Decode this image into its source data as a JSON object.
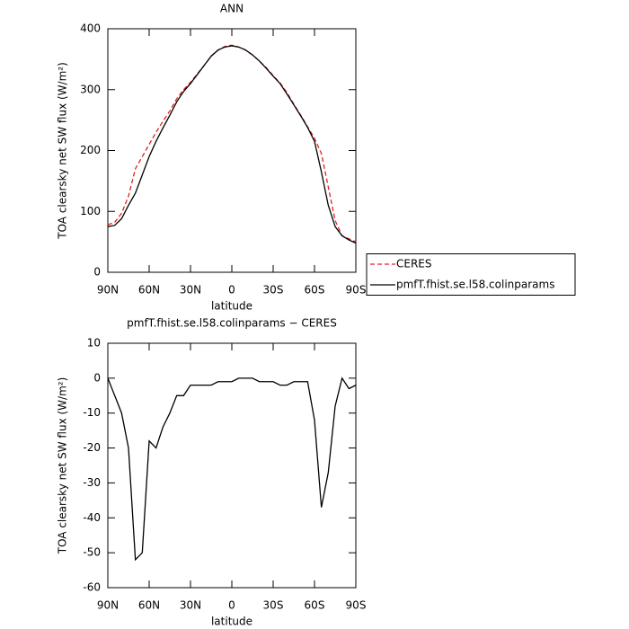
{
  "chart_data": [
    {
      "type": "line",
      "title": "ANN",
      "xlabel": "latitude",
      "ylabel": "TOA clearsky net SW flux (W/m²)",
      "x": [
        90,
        85,
        80,
        75,
        70,
        65,
        60,
        55,
        50,
        45,
        40,
        35,
        30,
        25,
        20,
        15,
        10,
        5,
        0,
        -5,
        -10,
        -15,
        -20,
        -25,
        -30,
        -35,
        -40,
        -45,
        -50,
        -55,
        -60,
        -65,
        -70,
        -75,
        -80,
        -85,
        -90
      ],
      "series": [
        {
          "name": "CERES",
          "color": "#e02020",
          "style": "dashed",
          "values": [
            78,
            82,
            97,
            125,
            170,
            190,
            210,
            230,
            248,
            265,
            285,
            300,
            312,
            326,
            340,
            355,
            365,
            371,
            373,
            370,
            365,
            357,
            347,
            336,
            323,
            311,
            295,
            276,
            258,
            239,
            220,
            195,
            140,
            85,
            60,
            55,
            50
          ]
        },
        {
          "name": "pmfT.fhist.se.l58.colinparams",
          "color": "#000000",
          "style": "solid",
          "values": [
            75,
            77,
            88,
            110,
            130,
            160,
            190,
            215,
            237,
            258,
            280,
            297,
            310,
            325,
            340,
            355,
            365,
            370,
            372,
            370,
            365,
            357,
            347,
            335,
            322,
            310,
            293,
            275,
            257,
            238,
            215,
            165,
            110,
            75,
            60,
            53,
            48
          ]
        }
      ],
      "xlim": [
        90,
        -90
      ],
      "xticks": [
        {
          "value": 90,
          "label": "90N"
        },
        {
          "value": 60,
          "label": "60N"
        },
        {
          "value": 30,
          "label": "30N"
        },
        0,
        {
          "value": -30,
          "label": "30S"
        },
        {
          "value": -60,
          "label": "60S"
        },
        {
          "value": -90,
          "label": "90S"
        }
      ],
      "ylim": [
        0,
        400
      ],
      "yticks": [
        0,
        100,
        200,
        300,
        400
      ],
      "legend": "right"
    },
    {
      "type": "line",
      "title": "pmfT.fhist.se.l58.colinparams − CERES",
      "xlabel": "latitude",
      "ylabel": "TOA clearsky net SW flux (W/m²)",
      "x": [
        90,
        85,
        80,
        75,
        70,
        65,
        60,
        55,
        50,
        45,
        40,
        35,
        30,
        25,
        20,
        15,
        10,
        5,
        0,
        -5,
        -10,
        -15,
        -20,
        -25,
        -30,
        -35,
        -40,
        -45,
        -50,
        -55,
        -60,
        -65,
        -70,
        -75,
        -80,
        -85,
        -90
      ],
      "series": [
        {
          "color": "#000000",
          "style": "solid",
          "values": [
            0,
            -5,
            -10,
            -20,
            -52,
            -50,
            -18,
            -20,
            -14,
            -10,
            -5,
            -5,
            -2,
            -2,
            -2,
            -2,
            -1,
            -1,
            -1,
            0,
            0,
            0,
            -1,
            -1,
            -1,
            -2,
            -2,
            -1,
            -1,
            -1,
            -12,
            -37,
            -27,
            -8,
            0,
            -3,
            -2
          ]
        }
      ],
      "xlim": [
        90,
        -90
      ],
      "xticks": [
        {
          "value": 90,
          "label": "90N"
        },
        {
          "value": 60,
          "label": "60N"
        },
        {
          "value": 30,
          "label": "30N"
        },
        0,
        {
          "value": -30,
          "label": "30S"
        },
        {
          "value": -60,
          "label": "60S"
        },
        {
          "value": -90,
          "label": "90S"
        }
      ],
      "ylim": [
        -60,
        10
      ],
      "yticks": [
        10,
        0,
        -10,
        -20,
        -30,
        -40,
        -50,
        -60
      ]
    }
  ]
}
